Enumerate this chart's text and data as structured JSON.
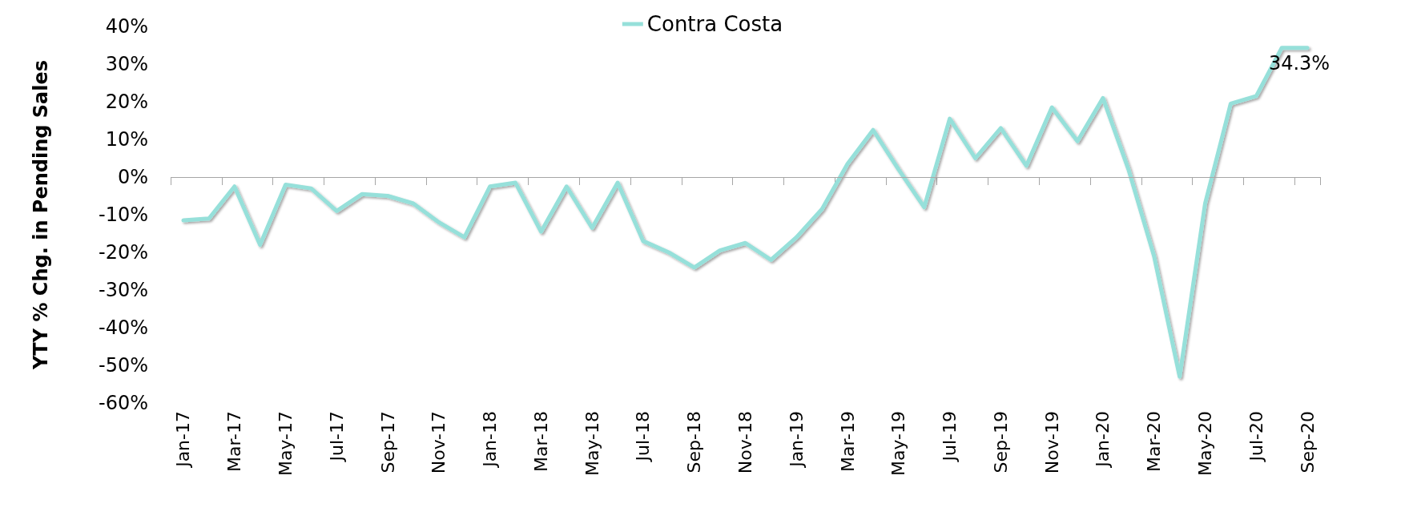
{
  "chart_data": {
    "type": "line",
    "ylabel": "YTY % Chg. in Pending Sales",
    "categories": [
      "Jan-17",
      null,
      "Mar-17",
      null,
      "May-17",
      null,
      "Jul-17",
      null,
      "Sep-17",
      null,
      "Nov-17",
      null,
      "Jan-18",
      null,
      "Mar-18",
      null,
      "May-18",
      null,
      "Jul-18",
      null,
      "Sep-18",
      null,
      "Nov-18",
      null,
      "Jan-19",
      null,
      "Mar-19",
      null,
      "May-19",
      null,
      "Jul-19",
      null,
      "Sep-19",
      null,
      "Nov-19",
      null,
      "Jan-20",
      null,
      "Mar-20",
      null,
      "May-20",
      null,
      "Jul-20",
      null,
      "Sep-20"
    ],
    "series": [
      {
        "name": "Contra Costa",
        "color": "#96e0da",
        "values": [
          -11.5,
          -11,
          -2.5,
          -18,
          -2,
          -3,
          -9,
          -4.5,
          -5,
          -7,
          -12,
          -16,
          -2.5,
          -1.5,
          -14.5,
          -2.5,
          -13.5,
          -1.5,
          -17,
          -20,
          -24,
          -19.5,
          -17.5,
          -22,
          -16,
          -8.5,
          3.5,
          12.5,
          2,
          -8,
          15.5,
          5,
          13,
          3,
          18.5,
          9.5,
          21,
          2,
          -21,
          -53,
          -7,
          19.5,
          21.5,
          34.3,
          34.3
        ],
        "value_labels": [
          null,
          null,
          null,
          null,
          null,
          null,
          null,
          null,
          null,
          null,
          null,
          null,
          null,
          null,
          null,
          null,
          null,
          null,
          null,
          null,
          null,
          null,
          null,
          null,
          null,
          null,
          null,
          null,
          null,
          null,
          null,
          null,
          null,
          null,
          null,
          null,
          null,
          null,
          null,
          null,
          null,
          null,
          null,
          null,
          "34.3%"
        ]
      }
    ],
    "ylim": [
      -60,
      40
    ],
    "yticks": [
      {
        "value": -60,
        "label": "-60%"
      },
      {
        "value": -50,
        "label": "-50%"
      },
      {
        "value": -40,
        "label": "-40%"
      },
      {
        "value": -30,
        "label": "-30%"
      },
      {
        "value": -20,
        "label": "-20%"
      },
      {
        "value": -10,
        "label": "-10%"
      },
      {
        "value": 0,
        "label": "0%"
      },
      {
        "value": 10,
        "label": "10%"
      },
      {
        "value": 20,
        "label": "20%"
      },
      {
        "value": 30,
        "label": "30%"
      },
      {
        "value": 40,
        "label": "40%"
      }
    ],
    "ref_lines": [
      {
        "axis": "y",
        "value": 0,
        "color": "#a6a6a6"
      }
    ],
    "grid": false,
    "legend": "top",
    "marker": "none",
    "line_style": "solid"
  }
}
